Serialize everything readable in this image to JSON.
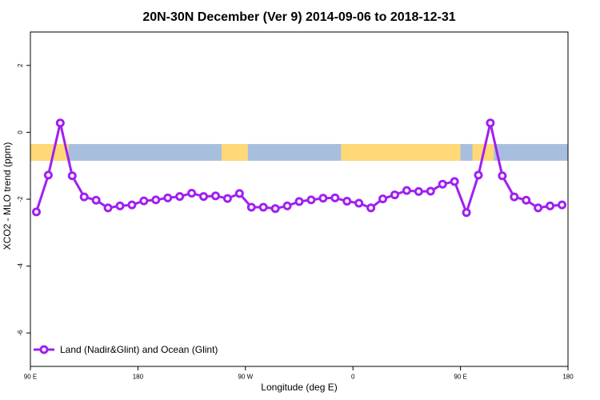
{
  "chart_data": {
    "type": "line",
    "title": "20N-30N December (Ver 9)   2014-09-06 to 2018-12-31",
    "xlabel": "Longitude (deg E)",
    "ylabel": "XCO2 - MLO trend (ppm)",
    "xlim": [
      90,
      495
    ],
    "ylim": [
      -7,
      3
    ],
    "xticks": [
      {
        "value": 90,
        "label": "90 E"
      },
      {
        "value": 180,
        "label": "180"
      },
      {
        "value": 270,
        "label": "90 W"
      },
      {
        "value": 360,
        "label": "0"
      },
      {
        "value": 450,
        "label": "90 E"
      },
      {
        "value": 540,
        "label": "180"
      }
    ],
    "yticks": [
      -6,
      -4,
      -2,
      0,
      2
    ],
    "legend_position": "bottom-left",
    "colors": {
      "series": "#a020f0",
      "ocean": "#a8bedf",
      "land": "#ffd977"
    },
    "map_strip": {
      "y_range": [
        -0.85,
        -0.35
      ],
      "land_longitudes": [
        [
          90,
          122
        ],
        [
          250,
          272
        ],
        [
          350,
          450
        ],
        [
          460,
          478
        ]
      ]
    },
    "series": [
      {
        "name": "Land (Nadir&Glint) and Ocean (Glint)",
        "x": [
          95,
          105,
          115,
          125,
          135,
          145,
          155,
          165,
          175,
          185,
          195,
          205,
          215,
          225,
          235,
          245,
          255,
          265,
          275,
          285,
          295,
          305,
          315,
          325,
          335,
          345,
          355,
          365,
          375,
          385,
          395,
          405,
          415,
          425,
          435,
          445,
          455,
          465,
          475,
          485,
          495,
          505,
          515,
          525,
          535
        ],
        "y": [
          -2.38,
          -1.28,
          0.28,
          -1.3,
          -1.93,
          -2.03,
          -2.26,
          -2.2,
          -2.17,
          -2.05,
          -2.02,
          -1.96,
          -1.92,
          -1.82,
          -1.92,
          -1.9,
          -1.98,
          -1.83,
          -2.24,
          -2.24,
          -2.28,
          -2.2,
          -2.07,
          -2.02,
          -1.97,
          -1.96,
          -2.06,
          -2.12,
          -2.26,
          -1.99,
          -1.87,
          -1.74,
          -1.77,
          -1.76,
          -1.55,
          -1.47,
          -2.4,
          -1.28,
          0.28,
          -1.3,
          -1.93,
          -2.03,
          -2.26,
          -2.2,
          -2.17
        ]
      }
    ]
  }
}
